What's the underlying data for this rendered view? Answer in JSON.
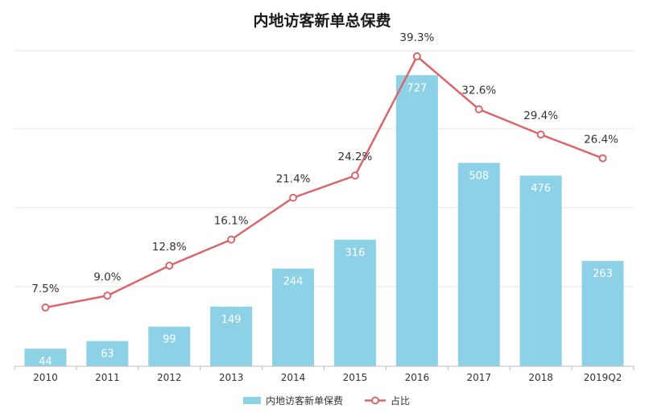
{
  "chart_data": {
    "type": "bar+line",
    "title": "内地访客新单总保费",
    "categories": [
      "2010",
      "2011",
      "2012",
      "2013",
      "2014",
      "2015",
      "2016",
      "2017",
      "2018",
      "2019Q2"
    ],
    "series": [
      {
        "name": "内地访客新单保费",
        "type": "bar",
        "color": "#8dd1e6",
        "values": [
          44,
          63,
          99,
          149,
          244,
          316,
          727,
          508,
          476,
          263
        ],
        "labels": [
          "44",
          "63",
          "99",
          "149",
          "244",
          "316",
          "727",
          "508",
          "476",
          "263"
        ]
      },
      {
        "name": "占比",
        "type": "line",
        "color": "#d9676a",
        "values": [
          7.5,
          9.0,
          12.8,
          16.1,
          21.4,
          24.2,
          39.3,
          32.6,
          29.4,
          26.4
        ],
        "labels": [
          "7.5%",
          "9.0%",
          "12.8%",
          "16.1%",
          "21.4%",
          "24.2%",
          "39.3%",
          "32.6%",
          "29.4%",
          "26.4%"
        ]
      }
    ],
    "bar_axis_range": [
      0,
      800
    ],
    "line_axis_range": [
      0,
      45
    ],
    "grid": true,
    "legend": "bottom-center"
  }
}
